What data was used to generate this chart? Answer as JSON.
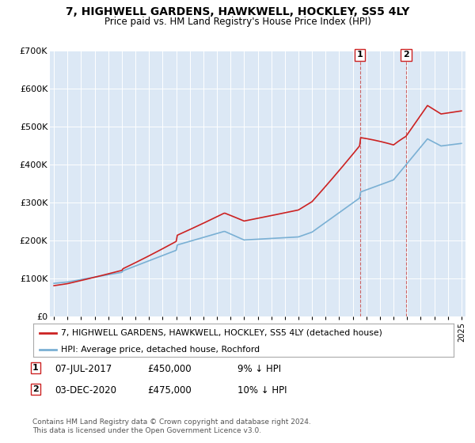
{
  "title": "7, HIGHWELL GARDENS, HAWKWELL, HOCKLEY, SS5 4LY",
  "subtitle": "Price paid vs. HM Land Registry's House Price Index (HPI)",
  "legend_line1": "7, HIGHWELL GARDENS, HAWKWELL, HOCKLEY, SS5 4LY (detached house)",
  "legend_line2": "HPI: Average price, detached house, Rochford",
  "footnote": "Contains HM Land Registry data © Crown copyright and database right 2024.\nThis data is licensed under the Open Government Licence v3.0.",
  "annotation1_date": "07-JUL-2017",
  "annotation1_price": "£450,000",
  "annotation1_hpi": "9% ↓ HPI",
  "annotation2_date": "03-DEC-2020",
  "annotation2_price": "£475,000",
  "annotation2_hpi": "10% ↓ HPI",
  "hpi_color": "#7ab0d4",
  "price_color": "#cc2222",
  "vline_color": "#cc6666",
  "plot_bg": "#dce8f5",
  "ylim": [
    0,
    700000
  ],
  "yticks": [
    0,
    100000,
    200000,
    300000,
    400000,
    500000,
    600000,
    700000
  ],
  "sale1_year": 2017.52,
  "sale1_price": 450000,
  "sale2_year": 2020.92,
  "sale2_price": 475000
}
